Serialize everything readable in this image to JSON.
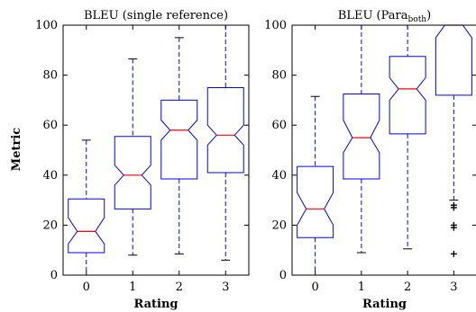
{
  "ylabel": "Metric",
  "colors": {
    "box": "#0000ff",
    "median": "#ff0000",
    "whisker": "#0000ff",
    "outlier": "#000000"
  },
  "chart_data": [
    {
      "type": "boxplot",
      "title": "BLEU (single reference)",
      "title_parts": {
        "main": "BLEU (single reference)",
        "sub": ""
      },
      "xlabel": "Rating",
      "ylabel": "Metric",
      "ylim": [
        0,
        100
      ],
      "yticks": [
        "0",
        "20",
        "40",
        "60",
        "80",
        "100"
      ],
      "categories": [
        "0",
        "1",
        "2",
        "3"
      ],
      "notched": true,
      "boxes": [
        {
          "category": "0",
          "whisker_low": 0,
          "q1": 9,
          "median": 17.5,
          "q3": 30.5,
          "whisker_high": 54,
          "notch_low": 12.5,
          "notch_high": 23,
          "outliers": []
        },
        {
          "category": "1",
          "whisker_low": 8,
          "q1": 26.5,
          "median": 40,
          "q3": 55.5,
          "whisker_high": 86.5,
          "notch_low": 36,
          "notch_high": 44,
          "outliers": []
        },
        {
          "category": "2",
          "whisker_low": 8.5,
          "q1": 38.5,
          "median": 58,
          "q3": 70,
          "whisker_high": 95,
          "notch_low": 54,
          "notch_high": 62,
          "outliers": []
        },
        {
          "category": "3",
          "whisker_low": 6,
          "q1": 41,
          "median": 56,
          "q3": 75,
          "whisker_high": 100,
          "notch_low": 52,
          "notch_high": 60,
          "outliers": []
        }
      ]
    },
    {
      "type": "boxplot",
      "title": "BLEU (Para_both)",
      "title_parts": {
        "main": "BLEU (Para",
        "sub": "both",
        "end": ")"
      },
      "xlabel": "Rating",
      "ylabel": "",
      "ylim": [
        0,
        100
      ],
      "yticks": [
        "0",
        "20",
        "40",
        "60",
        "80",
        "100"
      ],
      "categories": [
        "0",
        "1",
        "2",
        "3"
      ],
      "notched": true,
      "boxes": [
        {
          "category": "0",
          "whisker_low": 0,
          "q1": 15,
          "median": 26.5,
          "q3": 43.5,
          "whisker_high": 71.5,
          "notch_low": 20,
          "notch_high": 33,
          "outliers": []
        },
        {
          "category": "1",
          "whisker_low": 9,
          "q1": 38.5,
          "median": 55,
          "q3": 72.5,
          "whisker_high": 100,
          "notch_low": 49,
          "notch_high": 62,
          "outliers": []
        },
        {
          "category": "2",
          "whisker_low": 10.5,
          "q1": 56.5,
          "median": 74.5,
          "q3": 87.5,
          "whisker_high": 100,
          "notch_low": 70,
          "notch_high": 79,
          "outliers": []
        },
        {
          "category": "3",
          "whisker_low": 30,
          "q1": 72,
          "median": 100,
          "q3": 100,
          "whisker_high": 100,
          "notch_low": 95,
          "notch_high": 100,
          "outliers": [
            28,
            27,
            20,
            19,
            8.5
          ]
        }
      ]
    }
  ]
}
